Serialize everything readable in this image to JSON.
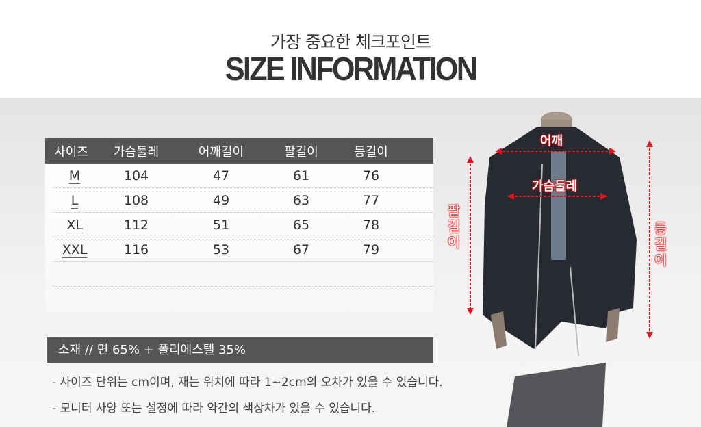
{
  "header": {
    "subtitle": "가장 중요한 체크포인트",
    "title": "SIZE INFORMATION"
  },
  "table": {
    "columns": [
      "사이즈",
      "가슴둘레",
      "어깨길이",
      "팔길이",
      "등길이"
    ],
    "rows": [
      [
        "M",
        "104",
        "47",
        "61",
        "76"
      ],
      [
        "L",
        "108",
        "49",
        "63",
        "77"
      ],
      [
        "XL",
        "112",
        "51",
        "65",
        "78"
      ],
      [
        "XXL",
        "116",
        "53",
        "67",
        "79"
      ]
    ]
  },
  "material": "소재 // 면 65% + 폴리에스텔 35%",
  "notes": [
    "- 사이즈 단위는 cm이며, 재는 위치에 따라 1~2cm의 오차가 있을 수 있습니다.",
    "- 모니터 사양 또는 설정에 따라 약간의 색상차가 있을 수 있습니다."
  ],
  "diagram": {
    "shoulder": "어깨",
    "chest": "가슴둘레",
    "sleeve": "팔길이",
    "back": "등길이",
    "arrow_color": "#e8141b"
  }
}
